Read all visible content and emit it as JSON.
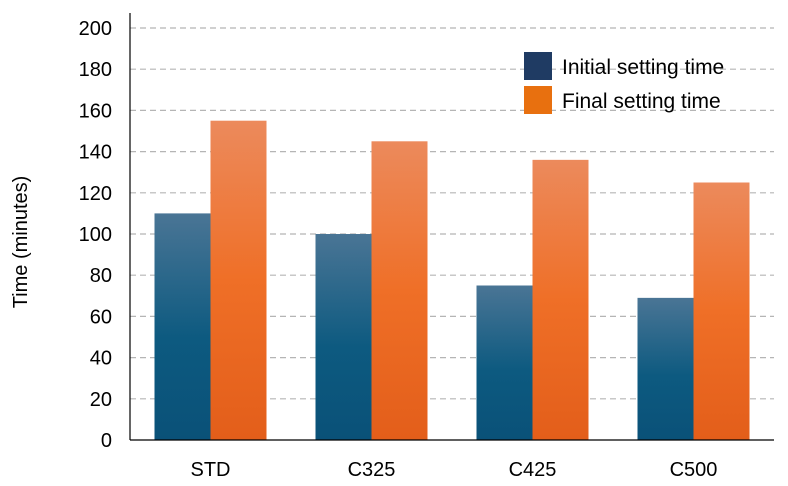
{
  "chart_data": {
    "type": "bar",
    "ylabel": "Time (minutes)",
    "xlabel": "",
    "title": "",
    "categories": [
      "STD",
      "C325",
      "C425",
      "C500"
    ],
    "ylim": [
      0,
      200
    ],
    "yticks": [
      0,
      20,
      40,
      60,
      80,
      100,
      120,
      140,
      160,
      180,
      200
    ],
    "grid": true,
    "legend_position": "top-right",
    "series": [
      {
        "name": "Initial setting time",
        "values": [
          110,
          100,
          75,
          69
        ],
        "color": "#1f4e79"
      },
      {
        "name": "Final setting time",
        "values": [
          155,
          145,
          136,
          125
        ],
        "color": "#ed7d31"
      }
    ]
  }
}
